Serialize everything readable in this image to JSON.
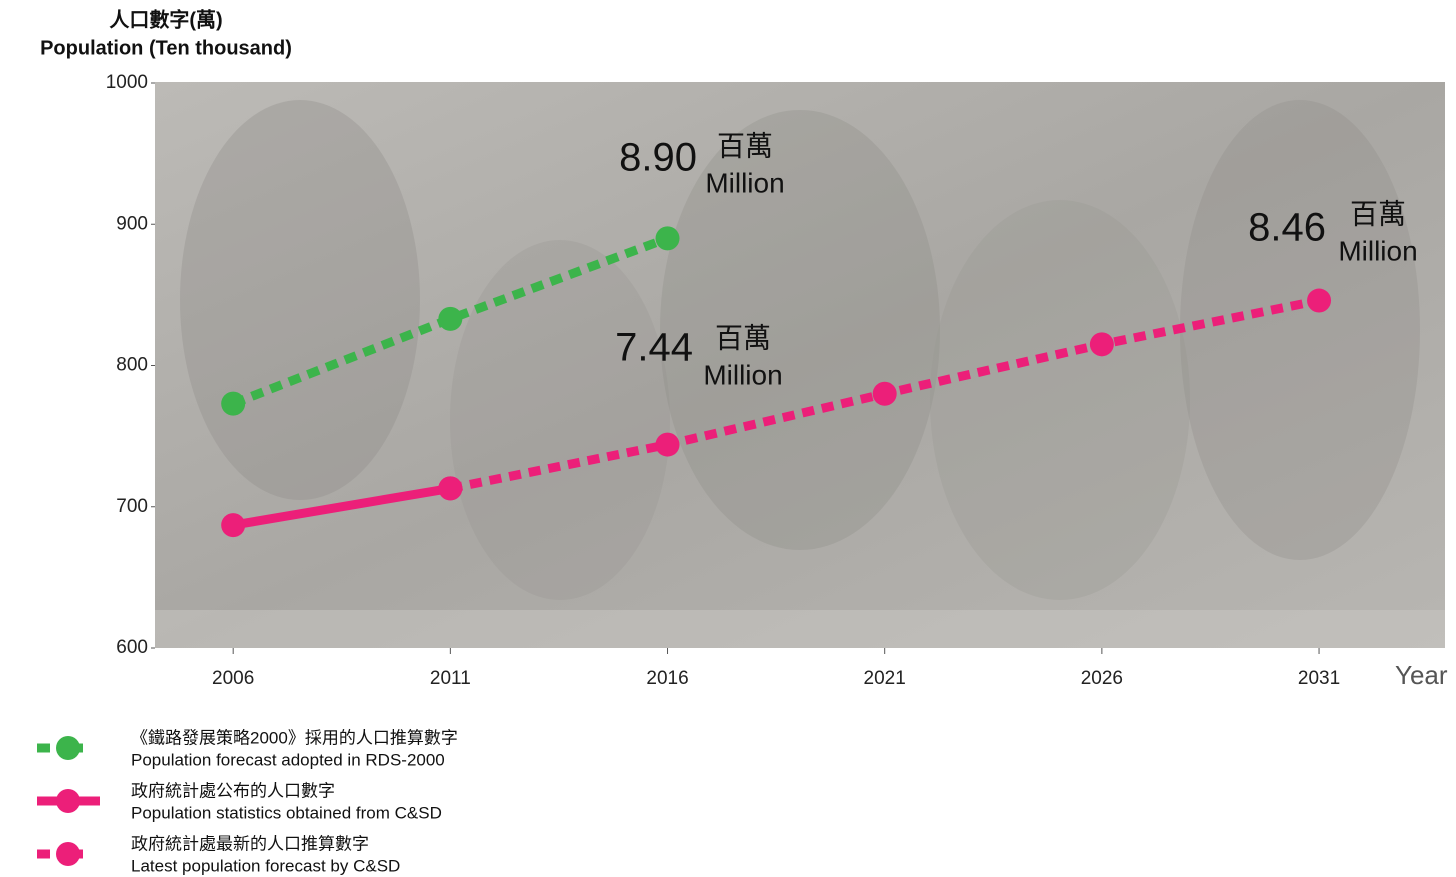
{
  "chart_data": {
    "type": "line",
    "y_title_zh": "人口數字(萬)",
    "y_title_en": "Population (Ten thousand)",
    "x_title": "Year",
    "xlim": [
      2004.2,
      2033.9
    ],
    "xticks": [
      2006,
      2011,
      2016,
      2021,
      2026,
      2031
    ],
    "ylim": [
      600,
      1000
    ],
    "yticks": [
      600,
      700,
      800,
      900,
      1000
    ],
    "series": [
      {
        "name": "《鐵路發展策略2000》採用的人口推算數字",
        "name_en": "Population forecast adopted in RDS-2000",
        "color": "#3cb44b",
        "dashed": true,
        "x": [
          2006,
          2011,
          2016
        ],
        "values": [
          773,
          833,
          890
        ]
      },
      {
        "name": "政府統計處公布的人口數字",
        "name_en": "Population statistics obtained from C&SD",
        "color": "#ec1f79",
        "dashed": false,
        "x": [
          2006,
          2011
        ],
        "values": [
          687,
          713
        ]
      },
      {
        "name": "政府統計處最新的人口推算數字",
        "name_en": "Latest population forecast by C&SD",
        "color": "#ec1f79",
        "dashed": true,
        "x": [
          2011,
          2016,
          2021,
          2026,
          2031
        ],
        "values": [
          713,
          744,
          780,
          815,
          846
        ]
      }
    ],
    "annotations": [
      {
        "text": "8.90",
        "unit_zh": "百萬",
        "unit_en": "Million"
      },
      {
        "text": "7.44",
        "unit_zh": "百萬",
        "unit_en": "Million"
      },
      {
        "text": "8.46",
        "unit_zh": "百萬",
        "unit_en": "Million"
      }
    ]
  }
}
